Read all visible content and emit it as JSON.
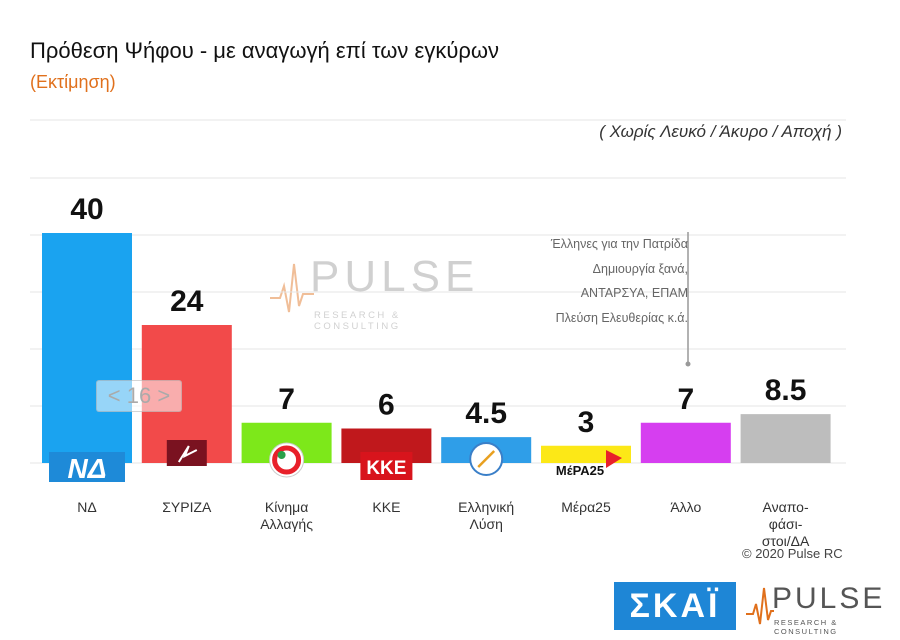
{
  "chart_data": {
    "type": "bar",
    "title": "Πρόθεση Ψήφου - με αναγωγή επί των εγκύρων",
    "subtitle": "(Εκτίμηση)",
    "note": "( Χωρίς Λευκό / Άκυρο / Αποχή )",
    "categories": [
      "ΝΔ",
      "ΣΥΡΙΖΑ",
      "Κίνημα Αλλαγής",
      "ΚΚΕ",
      "Ελληνική Λύση",
      "Μέρα25",
      "Άλλο",
      "Αναπο-φάσι-στοι/ΔΑ"
    ],
    "category_lines": [
      [
        "ΝΔ"
      ],
      [
        "ΣΥΡΙΖΑ"
      ],
      [
        "Κίνημα",
        "Αλλαγής"
      ],
      [
        "ΚΚΕ"
      ],
      [
        "Ελληνική",
        "Λύση"
      ],
      [
        "Μέρα25"
      ],
      [
        "Άλλο"
      ],
      [
        "Αναπο-",
        "φάσι-",
        "στοι/ΔΑ"
      ]
    ],
    "values": [
      40,
      24,
      7,
      6,
      4.5,
      3,
      7,
      8.5
    ],
    "value_labels": [
      "40",
      "24",
      "7",
      "6",
      "4.5",
      "3",
      "7",
      "8.5"
    ],
    "colors": [
      "#1aa3f0",
      "#f24a4a",
      "#7de81a",
      "#c0181c",
      "#2f9ee8",
      "#fce817",
      "#d63ef0",
      "#bdbdbd"
    ],
    "ylim": [
      0,
      50
    ],
    "grid": true,
    "gap_marker": "< 16 >",
    "other_breakdown": [
      "Έλληνες για την Πατρίδα",
      "Δημιουργία ξανά,",
      "ΑΝΤΑΡΣΥΑ, ΕΠΑΜ",
      "Πλεύση Ελευθερίας κ.ά."
    ]
  },
  "logos": {
    "nd": "ΝΔ",
    "kke": "ΚΚΕ",
    "mera25": "ΜέΡΑ25"
  },
  "copyright": "© 2020 Pulse RC",
  "watermark": {
    "word": "PULSE",
    "tagline": "RESEARCH & CONSULTING"
  },
  "branding": {
    "skai": "ΣΚΑΪ",
    "pulse": "PULSE",
    "pulse_tagline": "RESEARCH & CONSULTING"
  }
}
